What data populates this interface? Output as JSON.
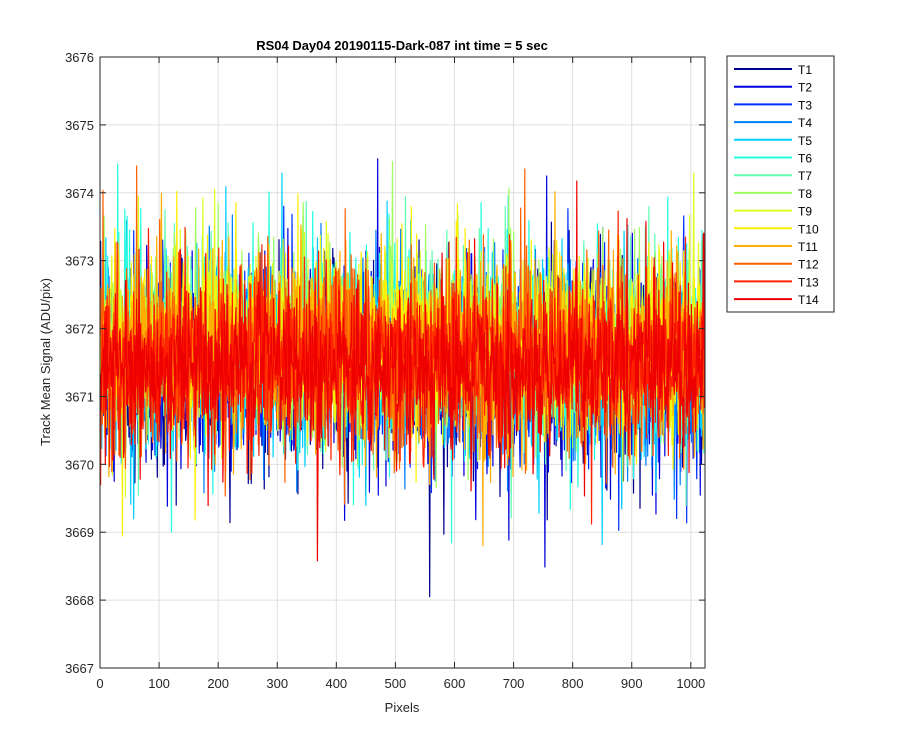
{
  "chart_data": {
    "type": "line",
    "title": "RS04 Day04 20190115-Dark-087 int time = 5 sec",
    "xlabel": "Pixels",
    "ylabel": "Track Mean Signal (ADU/pix)",
    "xlim": [
      0,
      1024
    ],
    "ylim": [
      3667,
      3676
    ],
    "xticks": [
      0,
      100,
      200,
      300,
      400,
      500,
      600,
      700,
      800,
      900,
      1000
    ],
    "yticks": [
      3667,
      3668,
      3669,
      3670,
      3671,
      3672,
      3673,
      3674,
      3675,
      3676
    ],
    "grid": true,
    "legend_position": "outside-right",
    "num_points": 1024,
    "series": [
      {
        "name": "T1",
        "color": "#00008F",
        "mean": 3671.4,
        "spread": 1.1
      },
      {
        "name": "T2",
        "color": "#0000DF",
        "mean": 3671.4,
        "spread": 1.1
      },
      {
        "name": "T3",
        "color": "#0030FF",
        "mean": 3671.5,
        "spread": 1.05
      },
      {
        "name": "T4",
        "color": "#0080FF",
        "mean": 3671.6,
        "spread": 1.05
      },
      {
        "name": "T5",
        "color": "#00CFFF",
        "mean": 3671.6,
        "spread": 1.05
      },
      {
        "name": "T6",
        "color": "#20FFDF",
        "mean": 3671.7,
        "spread": 1.05
      },
      {
        "name": "T7",
        "color": "#60FFAF",
        "mean": 3671.7,
        "spread": 1.0
      },
      {
        "name": "T8",
        "color": "#9FFF60",
        "mean": 3671.8,
        "spread": 1.0
      },
      {
        "name": "T9",
        "color": "#DFFF20",
        "mean": 3671.8,
        "spread": 1.0
      },
      {
        "name": "T10",
        "color": "#FFEF00",
        "mean": 3671.8,
        "spread": 1.0
      },
      {
        "name": "T11",
        "color": "#FFAF00",
        "mean": 3671.7,
        "spread": 1.0
      },
      {
        "name": "T12",
        "color": "#FF6000",
        "mean": 3671.6,
        "spread": 1.0
      },
      {
        "name": "T13",
        "color": "#FF2000",
        "mean": 3671.5,
        "spread": 0.95
      },
      {
        "name": "T14",
        "color": "#EF0000",
        "mean": 3671.4,
        "spread": 0.9
      }
    ]
  }
}
